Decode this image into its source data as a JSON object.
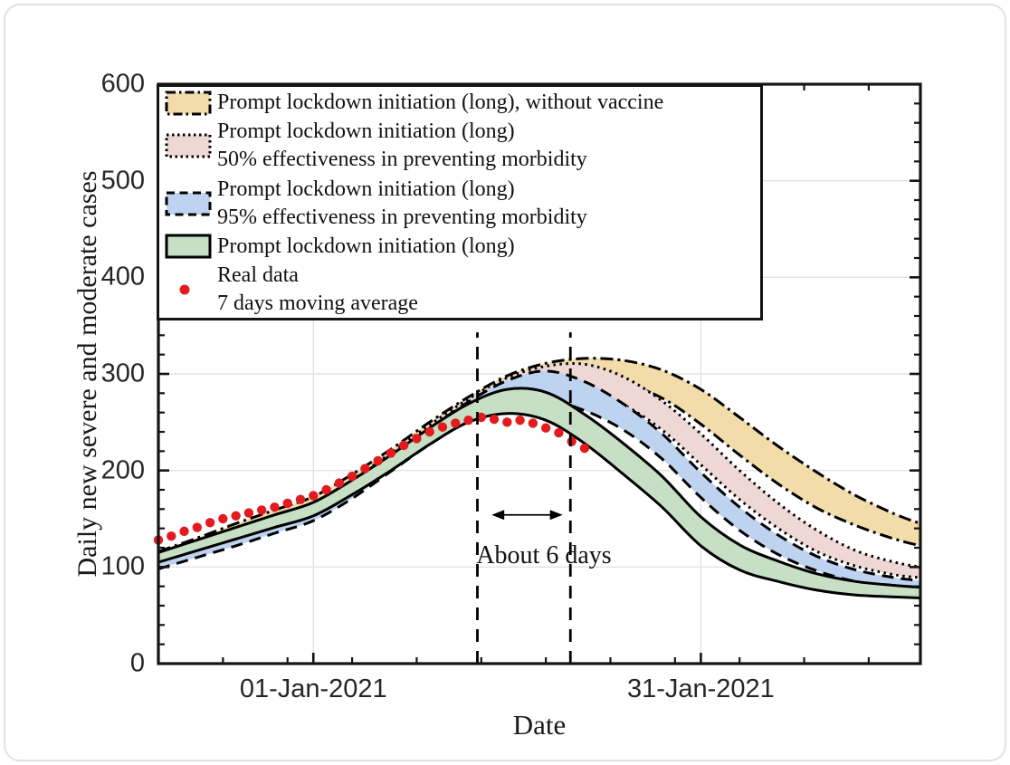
{
  "figure": {
    "background": "#ffffff",
    "card_border_color": "#e2e2e2"
  },
  "chart_data": {
    "type": "area",
    "title": "",
    "xlabel": "Date",
    "ylabel": "Daily new severe and moderate cases",
    "x_axis": {
      "unit": "days (day 0 = left edge, about 20-Dec-2020)",
      "range_days": [
        0,
        59
      ],
      "major_ticks": [
        {
          "day": 12,
          "label": "01-Jan-2021"
        },
        {
          "day": 42,
          "label": "31-Jan-2021"
        }
      ],
      "minor_tick_days": [
        5,
        10,
        15,
        20,
        25,
        30,
        35,
        40,
        45,
        50,
        55
      ]
    },
    "y_axis": {
      "range": [
        0,
        600
      ],
      "major_ticks": [
        0,
        100,
        200,
        300,
        400,
        500,
        600
      ],
      "minor_step": 20
    },
    "grid": {
      "horizontal_values": [
        100,
        200,
        300,
        400,
        500
      ],
      "vertical_days": [
        12,
        42
      ],
      "color": "#e2e2e2"
    },
    "edge_color": "#000000",
    "sample_days": [
      0,
      3,
      6,
      9,
      12,
      15,
      18,
      21,
      24,
      27,
      30,
      33,
      36,
      39,
      42,
      45,
      48,
      51,
      54,
      57,
      59
    ],
    "bands": [
      {
        "name": "Prompt lockdown initiation (long), without vaccine",
        "fill": "#f1dcaa",
        "edge_style": "dashdot",
        "upper": [
          116,
          130,
          145,
          159,
          173,
          196,
          222,
          250,
          276,
          298,
          311,
          316,
          314,
          304,
          284,
          255,
          225,
          198,
          174,
          155,
          145
        ],
        "lower": [
          105,
          118,
          132,
          146,
          159,
          181,
          206,
          231,
          253,
          274,
          288,
          294,
          290,
          275,
          248,
          216,
          186,
          161,
          143,
          129,
          122
        ]
      },
      {
        "name": "Prompt lockdown initiation (long), 50% effectiveness in preventing morbidity",
        "fill": "#eed7d5",
        "edge_style": "dotted",
        "upper": [
          110,
          124,
          138,
          152,
          166,
          190,
          218,
          247,
          274,
          296,
          308,
          310,
          297,
          272,
          238,
          200,
          166,
          138,
          117,
          105,
          100
        ],
        "lower": [
          100,
          113,
          126,
          139,
          152,
          175,
          202,
          228,
          251,
          272,
          283,
          283,
          268,
          242,
          206,
          170,
          140,
          116,
          101,
          92,
          89
        ]
      },
      {
        "name": "Prompt lockdown initiation (long), 95% effectiveness in preventing morbidity",
        "fill": "#bdd3f0",
        "edge_style": "dashed",
        "upper": [
          108,
          121,
          134,
          148,
          162,
          186,
          214,
          243,
          271,
          293,
          303,
          292,
          269,
          238,
          198,
          162,
          133,
          111,
          97,
          89,
          86
        ],
        "lower": [
          98,
          110,
          122,
          135,
          148,
          171,
          199,
          227,
          251,
          269,
          273,
          262,
          242,
          212,
          172,
          138,
          113,
          96,
          85,
          79,
          77
        ]
      },
      {
        "name": "Prompt lockdown initiation (long)",
        "fill": "#c7dfc5",
        "edge_style": "solid",
        "upper": [
          115,
          128,
          141,
          154,
          167,
          190,
          216,
          244,
          269,
          284,
          281,
          258,
          228,
          194,
          152,
          123,
          106,
          93,
          85,
          81,
          79
        ],
        "lower": [
          105,
          117,
          129,
          141,
          153,
          175,
          200,
          227,
          250,
          259,
          252,
          228,
          196,
          162,
          122,
          97,
          85,
          76,
          71,
          69,
          68
        ]
      }
    ],
    "scatter": {
      "name": "Real data, 7 days moving average",
      "color": "#e31b1e",
      "marker_radius": 5.2,
      "days": [
        0,
        1,
        2,
        3,
        4,
        5,
        6,
        7,
        8,
        9,
        10,
        11,
        12,
        13,
        14,
        15,
        16,
        17,
        18,
        19,
        20,
        21,
        22,
        23,
        24,
        25,
        26,
        27,
        28,
        29,
        30,
        31,
        32,
        33
      ],
      "values": [
        128,
        132,
        137,
        141,
        146,
        150,
        153,
        156,
        159,
        162,
        166,
        170,
        174,
        180,
        187,
        194,
        202,
        210,
        218,
        226,
        233,
        240,
        245,
        249,
        252,
        255,
        253,
        250,
        252,
        249,
        244,
        239,
        230,
        223
      ]
    },
    "annotations": {
      "vline_days": [
        24.7,
        31.9
      ],
      "vline_top_value": 343,
      "arrow": {
        "day_start": 25.8,
        "day_end": 31.3,
        "value": 154
      },
      "label": {
        "text": "About 6 days",
        "day": 29.8,
        "value": 112
      }
    }
  },
  "legend": {
    "items": [
      {
        "lines": [
          "Prompt lockdown initiation (long), without vaccine"
        ],
        "swatch": "band",
        "fill": "#f1dcaa",
        "edge_style": "dashdot"
      },
      {
        "lines": [
          "Prompt lockdown initiation (long)",
          "50% effectiveness in preventing morbidity"
        ],
        "swatch": "band",
        "fill": "#eed7d5",
        "edge_style": "dotted"
      },
      {
        "lines": [
          "Prompt lockdown initiation (long)",
          "95% effectiveness in preventing morbidity"
        ],
        "swatch": "band",
        "fill": "#bdd3f0",
        "edge_style": "dashed"
      },
      {
        "lines": [
          "Prompt lockdown initiation (long)"
        ],
        "swatch": "band",
        "fill": "#c7dfc5",
        "edge_style": "solid"
      },
      {
        "lines": [
          "Real data",
          "7 days moving average"
        ],
        "swatch": "dot",
        "fill": "#e31b1e",
        "edge_style": "none"
      }
    ]
  }
}
